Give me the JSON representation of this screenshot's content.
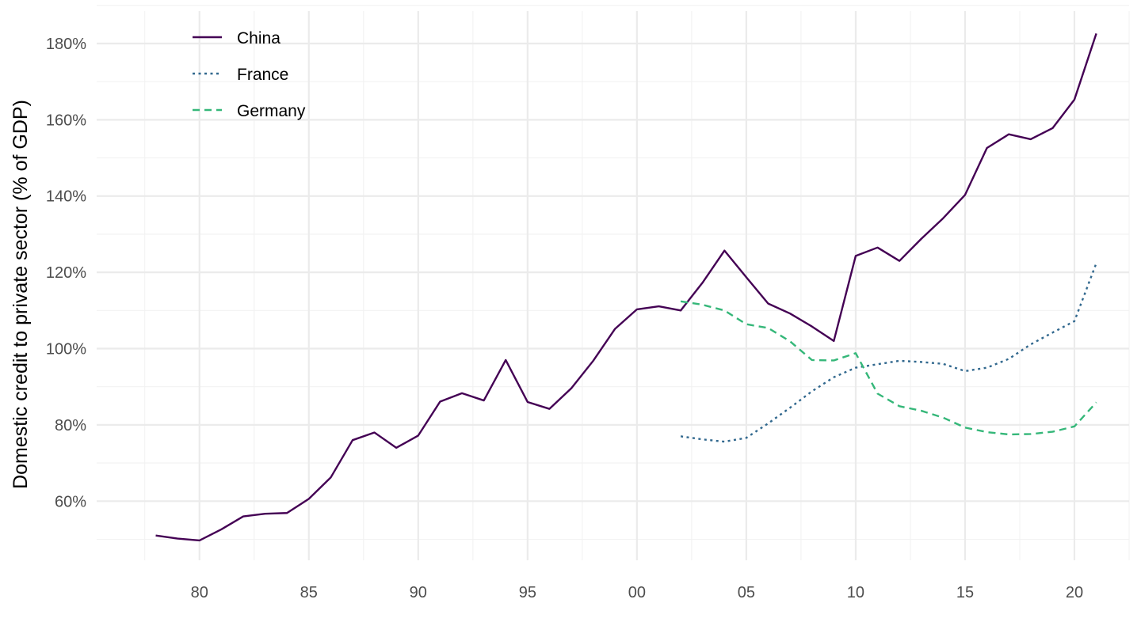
{
  "chart_data": {
    "type": "line",
    "title": "",
    "xlabel": "",
    "ylabel": "Domestic credit to private sector (% of GDP)",
    "x_ticks": [
      {
        "year": 1980,
        "label": "80"
      },
      {
        "year": 1985,
        "label": "85"
      },
      {
        "year": 1990,
        "label": "90"
      },
      {
        "year": 1995,
        "label": "95"
      },
      {
        "year": 2000,
        "label": "00"
      },
      {
        "year": 2005,
        "label": "05"
      },
      {
        "year": 2010,
        "label": "10"
      },
      {
        "year": 2015,
        "label": "15"
      },
      {
        "year": 2020,
        "label": "20"
      }
    ],
    "y_ticks": [
      {
        "value": 60,
        "label": "60%"
      },
      {
        "value": 80,
        "label": "80%"
      },
      {
        "value": 100,
        "label": "100%"
      },
      {
        "value": 120,
        "label": "120%"
      },
      {
        "value": 140,
        "label": "140%"
      },
      {
        "value": 160,
        "label": "160%"
      },
      {
        "value": 180,
        "label": "180%"
      }
    ],
    "xlim": [
      1975.3,
      2022.5
    ],
    "ylim": [
      44.5,
      188.5
    ],
    "grid": true,
    "legend_position": "top-left",
    "series": [
      {
        "name": "China",
        "color": "#440154",
        "dash": "solid",
        "x": [
          1978,
          1979,
          1980,
          1981,
          1982,
          1983,
          1984,
          1985,
          1986,
          1987,
          1988,
          1989,
          1990,
          1991,
          1992,
          1993,
          1994,
          1995,
          1996,
          1997,
          1998,
          1999,
          2000,
          2001,
          2002,
          2003,
          2004,
          2005,
          2006,
          2007,
          2008,
          2009,
          2010,
          2011,
          2012,
          2013,
          2014,
          2015,
          2016,
          2017,
          2018,
          2019,
          2020,
          2021
        ],
        "y": [
          51,
          50.2,
          49.7,
          52.6,
          56,
          56.7,
          56.9,
          60.6,
          66.2,
          76,
          78,
          74,
          77.2,
          86.1,
          88.3,
          86.4,
          97,
          86,
          84.2,
          89.6,
          96.8,
          105.2,
          110.3,
          111.1,
          110,
          117.3,
          125.7,
          118.7,
          111.8,
          109.2,
          105.8,
          102,
          124.3,
          126.5,
          123,
          128.8,
          134.2,
          140.3,
          152.6,
          156.2,
          154.9,
          157.8,
          165.3,
          182.6
        ]
      },
      {
        "name": "France",
        "color": "#31688e",
        "dash": "dotted",
        "x": [
          2002,
          2003,
          2004,
          2005,
          2006,
          2007,
          2008,
          2009,
          2010,
          2011,
          2012,
          2013,
          2014,
          2015,
          2016,
          2017,
          2018,
          2019,
          2020,
          2021
        ],
        "y": [
          77,
          76.2,
          75.6,
          76.6,
          80.4,
          84.5,
          88.8,
          92.5,
          95,
          95.9,
          96.8,
          96.5,
          96,
          94.1,
          95,
          97.3,
          101.1,
          104.2,
          107.2,
          122.4
        ]
      },
      {
        "name": "Germany",
        "color": "#35b779",
        "dash": "dashed",
        "x": [
          2002,
          2003,
          2004,
          2005,
          2006,
          2007,
          2008,
          2009,
          2010,
          2011,
          2012,
          2013,
          2014,
          2015,
          2016,
          2017,
          2018,
          2019,
          2020,
          2021
        ],
        "y": [
          112.4,
          111.5,
          110,
          106.4,
          105.4,
          101.9,
          97,
          96.9,
          98.8,
          88.2,
          84.9,
          83.7,
          81.9,
          79.3,
          78.1,
          77.5,
          77.6,
          78.2,
          79.6,
          85.9
        ]
      }
    ]
  }
}
